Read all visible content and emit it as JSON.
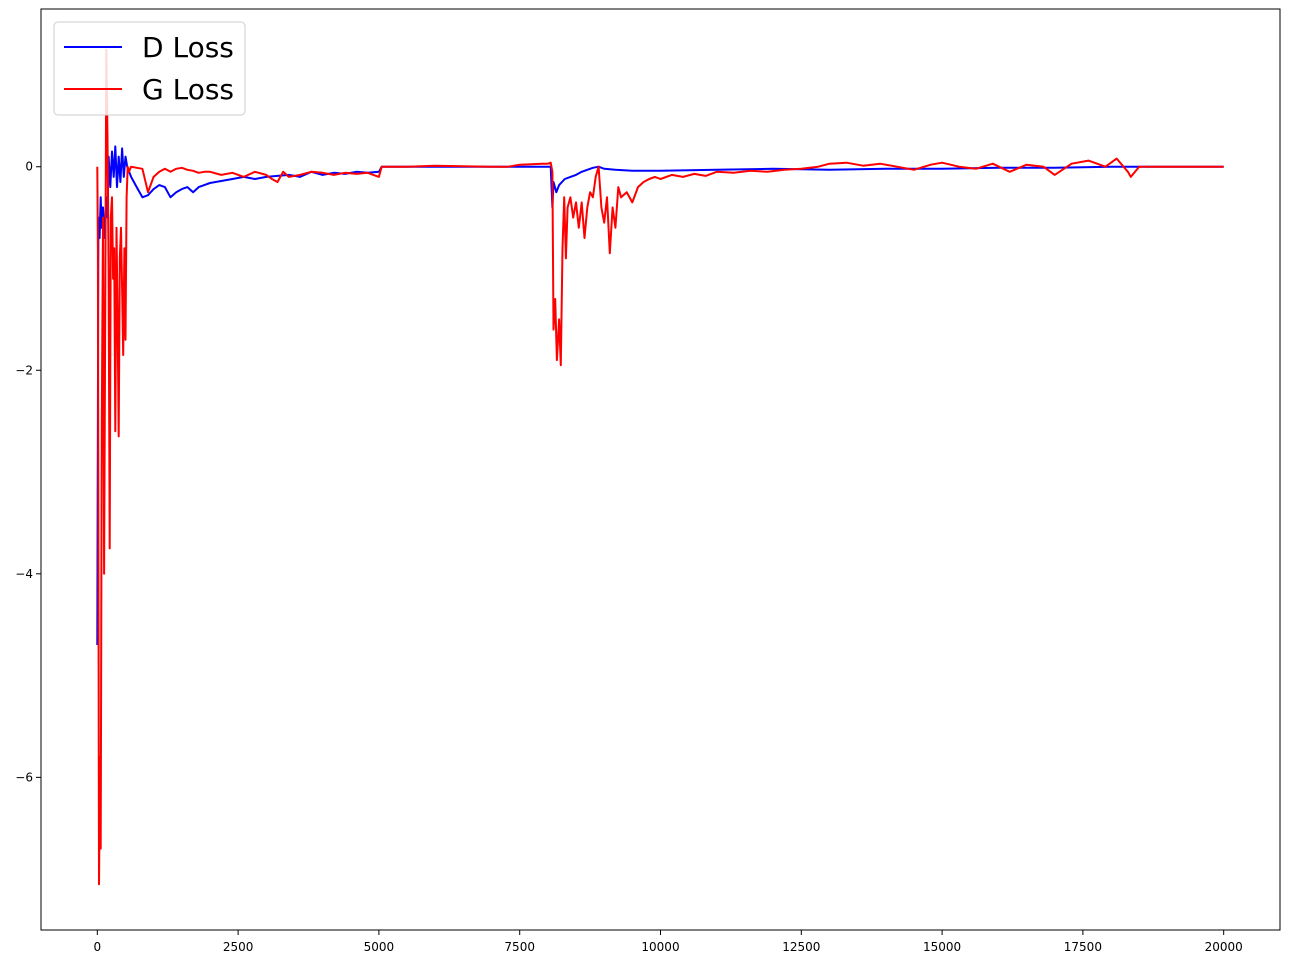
{
  "chart_data": {
    "type": "line",
    "title": "",
    "xlabel": "",
    "ylabel": "",
    "xlim": [
      -1000,
      21000
    ],
    "ylim": [
      -7.5,
      1.55
    ],
    "xticks": [
      0,
      2500,
      5000,
      7500,
      10000,
      12500,
      15000,
      17500,
      20000
    ],
    "xtick_labels": [
      "0",
      "2500",
      "5000",
      "7500",
      "10000",
      "12500",
      "15000",
      "17500",
      "20000"
    ],
    "yticks": [
      0,
      -2,
      -4,
      -6
    ],
    "ytick_labels": [
      "0",
      "−2",
      "−4",
      "−6"
    ],
    "grid": false,
    "legend_position": "upper-left",
    "series": [
      {
        "name": "D Loss",
        "color": "#0000ff",
        "x": [
          0,
          20,
          40,
          60,
          80,
          100,
          130,
          160,
          180,
          200,
          230,
          260,
          290,
          320,
          350,
          380,
          410,
          440,
          470,
          500,
          530,
          600,
          700,
          800,
          900,
          1000,
          1100,
          1200,
          1300,
          1400,
          1500,
          1600,
          1700,
          1800,
          1900,
          2000,
          2200,
          2400,
          2600,
          2800,
          3000,
          3200,
          3400,
          3600,
          3800,
          4000,
          4200,
          4400,
          4600,
          4800,
          5000,
          5050,
          5100,
          5500,
          6000,
          7000,
          7500,
          8000,
          8050,
          8080,
          8100,
          8150,
          8200,
          8300,
          8400,
          8500,
          8600,
          8700,
          8800,
          8900,
          9000,
          9200,
          9500,
          10000,
          11000,
          12000,
          13000,
          14000,
          15000,
          16000,
          17000,
          18000,
          19000,
          20000
        ],
        "values": [
          -4.7,
          -0.5,
          -0.7,
          -0.3,
          -0.6,
          -0.4,
          -0.7,
          -0.3,
          -0.5,
          0.1,
          -0.2,
          0.15,
          -0.1,
          0.2,
          -0.2,
          0.1,
          -0.15,
          0.18,
          -0.1,
          0.1,
          0.0,
          -0.1,
          -0.2,
          -0.3,
          -0.28,
          -0.22,
          -0.18,
          -0.2,
          -0.3,
          -0.25,
          -0.22,
          -0.2,
          -0.25,
          -0.2,
          -0.18,
          -0.16,
          -0.14,
          -0.12,
          -0.1,
          -0.12,
          -0.1,
          -0.09,
          -0.08,
          -0.1,
          -0.05,
          -0.08,
          -0.06,
          -0.07,
          -0.05,
          -0.06,
          -0.05,
          0.0,
          0.0,
          0.0,
          0.0,
          0.0,
          0.0,
          0.0,
          0.0,
          -0.4,
          -0.15,
          -0.25,
          -0.18,
          -0.12,
          -0.1,
          -0.08,
          -0.05,
          -0.03,
          -0.01,
          0.0,
          -0.02,
          -0.03,
          -0.04,
          -0.04,
          -0.03,
          -0.02,
          -0.03,
          -0.02,
          -0.02,
          -0.01,
          -0.01,
          0.0,
          0.0,
          0.0
        ]
      },
      {
        "name": "G Loss",
        "color": "#ff0000",
        "x": [
          0,
          10,
          30,
          50,
          60,
          80,
          100,
          120,
          140,
          160,
          180,
          200,
          220,
          240,
          260,
          280,
          300,
          320,
          340,
          360,
          380,
          400,
          420,
          440,
          460,
          480,
          500,
          520,
          540,
          560,
          600,
          700,
          800,
          900,
          1000,
          1100,
          1200,
          1300,
          1400,
          1500,
          1600,
          1700,
          1800,
          1900,
          2000,
          2200,
          2400,
          2600,
          2800,
          3000,
          3100,
          3200,
          3300,
          3400,
          3600,
          3800,
          4000,
          4200,
          4400,
          4600,
          4800,
          5000,
          5050,
          5100,
          5500,
          6000,
          7000,
          7300,
          7500,
          7900,
          8000,
          8050,
          8080,
          8100,
          8130,
          8160,
          8200,
          8230,
          8260,
          8290,
          8320,
          8350,
          8400,
          8450,
          8500,
          8550,
          8600,
          8650,
          8700,
          8750,
          8800,
          8850,
          8900,
          8950,
          9000,
          9050,
          9100,
          9150,
          9200,
          9250,
          9300,
          9400,
          9500,
          9600,
          9700,
          9800,
          9900,
          10000,
          10200,
          10400,
          10600,
          10800,
          11000,
          11300,
          11600,
          11900,
          12200,
          12500,
          12800,
          13000,
          13300,
          13600,
          13900,
          14200,
          14500,
          14800,
          15000,
          15300,
          15600,
          15900,
          16200,
          16500,
          16800,
          17000,
          17300,
          17600,
          17900,
          18100,
          18300,
          18350,
          18500,
          19000,
          19500,
          20000
        ],
        "values": [
          0.0,
          -0.8,
          -7.05,
          -5.8,
          -6.7,
          -2.5,
          -0.5,
          -4.0,
          -1.5,
          1.15,
          0.3,
          -1.0,
          -3.75,
          -0.5,
          -0.3,
          -1.1,
          -0.8,
          -2.6,
          -0.6,
          -1.5,
          -2.65,
          -0.9,
          -0.6,
          -1.2,
          -1.85,
          -0.8,
          -1.7,
          -0.3,
          0.0,
          -0.05,
          0.0,
          -0.01,
          -0.02,
          -0.25,
          -0.1,
          -0.05,
          -0.02,
          -0.05,
          -0.02,
          -0.01,
          -0.03,
          -0.04,
          -0.06,
          -0.05,
          -0.05,
          -0.08,
          -0.06,
          -0.1,
          -0.05,
          -0.08,
          -0.12,
          -0.15,
          -0.05,
          -0.1,
          -0.08,
          -0.05,
          -0.06,
          -0.08,
          -0.06,
          -0.07,
          -0.06,
          -0.1,
          0.0,
          0.0,
          0.0,
          0.01,
          0.0,
          0.0,
          0.02,
          0.03,
          0.03,
          0.04,
          -0.05,
          -1.6,
          -1.3,
          -1.9,
          -1.5,
          -1.95,
          -0.8,
          -0.3,
          -0.9,
          -0.4,
          -0.3,
          -0.5,
          -0.35,
          -0.6,
          -0.35,
          -0.7,
          -0.4,
          -0.25,
          -0.3,
          -0.1,
          0.0,
          -0.4,
          -0.55,
          -0.3,
          -0.85,
          -0.4,
          -0.6,
          -0.2,
          -0.3,
          -0.25,
          -0.35,
          -0.2,
          -0.15,
          -0.12,
          -0.1,
          -0.12,
          -0.08,
          -0.1,
          -0.07,
          -0.09,
          -0.05,
          -0.06,
          -0.04,
          -0.05,
          -0.03,
          -0.02,
          0.0,
          0.03,
          0.04,
          0.01,
          0.03,
          0.0,
          -0.03,
          0.02,
          0.04,
          0.0,
          -0.02,
          0.03,
          -0.05,
          0.02,
          0.0,
          -0.08,
          0.03,
          0.06,
          0.0,
          0.08,
          -0.05,
          -0.1,
          0.0,
          0.0,
          0.0,
          0.0
        ]
      }
    ]
  }
}
